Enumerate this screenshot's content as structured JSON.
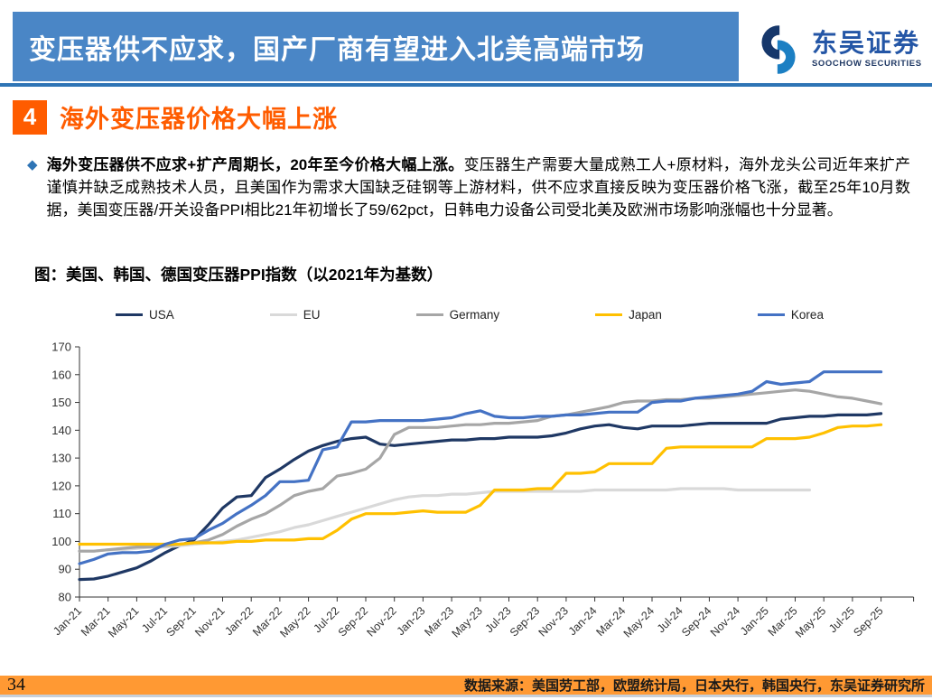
{
  "header": {
    "title": "变压器供不应求，国产厂商有望进入北美高端市场",
    "brand_cn": "东吴证券",
    "brand_en": "SOOCHOW SECURITIES"
  },
  "section": {
    "number": "4",
    "title": "海外变压器价格大幅上涨"
  },
  "paragraph": {
    "bullet": "◆",
    "bold": "海外变压器供不应求+扩产周期长，20年至今价格大幅上涨。",
    "regular": "变压器生产需要大量成熟工人+原材料，海外龙头公司近年来扩产谨慎并缺乏成熟技术人员，且美国作为需求大国缺乏硅钢等上游材料，供不应求直接反映为变压器价格飞涨，截至25年10月数据，美国变压器/开关设备PPI相比21年初增长了59/62pct，日韩电力设备公司受北美及欧洲市场影响涨幅也十分显著。"
  },
  "figure_title": "图：美国、韩国、德国变压器PPI指数（以2021年为基数）",
  "chart_data": {
    "type": "line",
    "title": "美国、韩国、德国变压器PPI指数（以2021年为基数）",
    "xlabel": "",
    "ylabel": "",
    "ylim": [
      80,
      170
    ],
    "ytick_step": 10,
    "grid": false,
    "legend_position": "top",
    "x_tick_labels": [
      "Jan-21",
      "Mar-21",
      "May-21",
      "Jul-21",
      "Sep-21",
      "Nov-21",
      "Jan-22",
      "Mar-22",
      "May-22",
      "Jul-22",
      "Sep-22",
      "Nov-22",
      "Jan-23",
      "Mar-23",
      "May-23",
      "Jul-23",
      "Sep-23",
      "Nov-23",
      "Jan-24",
      "Mar-24",
      "May-24",
      "Jul-24",
      "Sep-24",
      "Nov-24",
      "Jan-25",
      "Mar-25",
      "May-25",
      "Jul-25",
      "Sep-25"
    ],
    "x_monthly_start": "Jan-21",
    "x_monthly_end": "Sep-25",
    "series": [
      {
        "name": "USA",
        "color": "#1F3864",
        "values": [
          86.3,
          86.5,
          87.5,
          89,
          90.5,
          93,
          96,
          98.5,
          100.5,
          106,
          112,
          116,
          116.5,
          123,
          126,
          129.5,
          132.5,
          134.5,
          136,
          137,
          137.5,
          135,
          134.5,
          135,
          135.5,
          136,
          136.5,
          136.5,
          137,
          137,
          137.5,
          137.5,
          137.5,
          138,
          139,
          140.5,
          141.5,
          142,
          141,
          140.5,
          141.5,
          141.5,
          141.5,
          142,
          142.5,
          142.5,
          142.5,
          142.5,
          142.5,
          144,
          144.5,
          145,
          145,
          145.5,
          145.5,
          145.5,
          146
        ]
      },
      {
        "name": "EU",
        "color": "#D9D9D9",
        "values": [
          96.5,
          96.5,
          97,
          97,
          97.5,
          98,
          98,
          98.5,
          99,
          99.5,
          100,
          100.5,
          101.5,
          102.5,
          103.5,
          105,
          106,
          107.5,
          109,
          110.5,
          112,
          113.5,
          115,
          116,
          116.5,
          116.5,
          117,
          117,
          117.5,
          118,
          118,
          118,
          118,
          118,
          118,
          118,
          118.5,
          118.5,
          118.5,
          118.5,
          118.5,
          118.5,
          119,
          119,
          119,
          119,
          118.5,
          118.5,
          118.5,
          118.5,
          118.5,
          118.5,
          null,
          null,
          null,
          null,
          null
        ]
      },
      {
        "name": "Germany",
        "color": "#A6A6A6",
        "values": [
          96.5,
          96.5,
          97,
          97.5,
          98,
          98,
          98.5,
          99,
          99.5,
          100.5,
          102.5,
          105.5,
          108,
          110,
          113,
          116.5,
          118,
          119,
          123.5,
          124.5,
          126,
          130,
          138.5,
          141,
          141,
          141,
          141.5,
          142,
          142,
          142.5,
          142.5,
          143,
          143.5,
          145,
          145.5,
          146.5,
          147.5,
          148.5,
          150,
          150.5,
          150.5,
          151,
          151,
          151.5,
          151.5,
          152,
          152.5,
          153,
          153.5,
          154,
          154.5,
          154,
          153,
          152,
          151.5,
          150.5,
          149.5
        ]
      },
      {
        "name": "Japan",
        "color": "#FFC000",
        "values": [
          99,
          99,
          99,
          99,
          99,
          99,
          99,
          99,
          99.5,
          99.5,
          99.5,
          100,
          100,
          100.5,
          100.5,
          100.5,
          101,
          101,
          104,
          108,
          110,
          110,
          110,
          110.5,
          111,
          110.5,
          110.5,
          110.5,
          113,
          118.5,
          118.5,
          118.5,
          119,
          119,
          124.5,
          124.5,
          125,
          128,
          128,
          128,
          128,
          133.5,
          134,
          134,
          134,
          134,
          134,
          134,
          137,
          137,
          137,
          137.5,
          139,
          141,
          141.5,
          141.5,
          142
        ]
      },
      {
        "name": "Korea",
        "color": "#4472C4",
        "values": [
          92,
          93.5,
          95.5,
          96,
          96,
          96.5,
          99,
          100.5,
          101,
          104,
          106.5,
          110,
          113,
          116.5,
          121.5,
          121.5,
          122,
          133,
          134,
          143,
          143,
          143.5,
          143.5,
          143.5,
          143.5,
          144,
          144.5,
          146,
          147,
          145,
          144.5,
          144.5,
          145,
          145,
          145.5,
          145.5,
          146,
          146.5,
          146.5,
          146.5,
          150,
          150.5,
          150.5,
          151.5,
          152,
          152.5,
          153,
          154,
          157.5,
          156.5,
          157,
          157.5,
          161,
          161,
          161,
          161,
          161
        ]
      }
    ]
  },
  "footer": {
    "page": "34",
    "source": "数据来源：美国劳工部，欧盟统计局，日本央行，韩国央行，东吴证券研究所"
  },
  "colors": {
    "banner_bg": "#4A86C6",
    "divider": "#2E74B5",
    "section_orange": "#FF5C00",
    "footer_bg": "#FF9933",
    "bullet": "#2E74B5"
  }
}
